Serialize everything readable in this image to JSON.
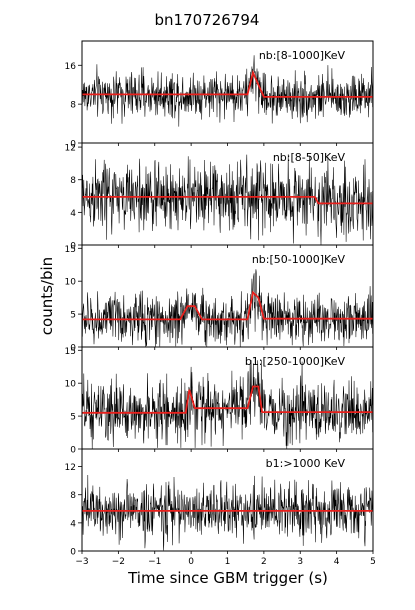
{
  "title": "bn170726794",
  "ylabel": "counts/bin",
  "xlabel": "Time since GBM trigger (s)",
  "colors": {
    "signal": "#000000",
    "model": "#e8201c",
    "frame": "#000000"
  },
  "chart_data": [
    {
      "type": "line",
      "label": "nb:[8-1000]KeV",
      "xlim": [
        -3,
        5
      ],
      "ylim": [
        0,
        21
      ],
      "yticks": [
        0,
        8,
        16
      ],
      "xticks": [
        -3,
        -2,
        -1,
        0,
        1,
        2,
        3,
        4,
        5
      ],
      "baseline": 10,
      "noise_sd": 2.4,
      "model": {
        "x": [
          -3,
          1.55,
          1.7,
          1.85,
          2.0,
          5
        ],
        "y": [
          10,
          10,
          14.5,
          12,
          9.5,
          9.5
        ]
      }
    },
    {
      "type": "line",
      "label": "nb:[8-50]KeV",
      "xlim": [
        -3,
        5
      ],
      "ylim": [
        0,
        12.5
      ],
      "yticks": [
        0,
        4,
        8,
        12
      ],
      "xticks": [
        -3,
        -2,
        -1,
        0,
        1,
        2,
        3,
        4,
        5
      ],
      "baseline": 5.8,
      "noise_sd": 2.2,
      "model": {
        "x": [
          -3,
          3.4,
          3.5,
          5
        ],
        "y": [
          5.9,
          5.9,
          5.1,
          5.1
        ]
      }
    },
    {
      "type": "line",
      "label": "nb:[50-1000]KeV",
      "xlim": [
        -3,
        5
      ],
      "ylim": [
        0,
        15.5
      ],
      "yticks": [
        0,
        5,
        10,
        15
      ],
      "xticks": [
        -3,
        -2,
        -1,
        0,
        1,
        2,
        3,
        4,
        5
      ],
      "baseline": 4.2,
      "noise_sd": 2.0,
      "model": {
        "x": [
          -3,
          -0.3,
          -0.1,
          0.1,
          0.3,
          1.55,
          1.7,
          1.85,
          2.0,
          5
        ],
        "y": [
          4.2,
          4.2,
          6.2,
          6.2,
          4.2,
          4.2,
          8.3,
          7.5,
          4.3,
          4.3
        ]
      }
    },
    {
      "type": "line",
      "label": "b1:[250-1000]KeV",
      "xlim": [
        -3,
        5
      ],
      "ylim": [
        0,
        15.5
      ],
      "yticks": [
        0,
        5,
        10,
        15
      ],
      "xticks": [
        -3,
        -2,
        -1,
        0,
        1,
        2,
        3,
        4,
        5
      ],
      "baseline": 5.5,
      "noise_sd": 2.4,
      "model": {
        "x": [
          -3,
          -0.15,
          -0.05,
          0.1,
          0.2,
          1.55,
          1.7,
          1.85,
          1.95,
          5
        ],
        "y": [
          5.5,
          5.5,
          9,
          6.2,
          6.2,
          6.2,
          9.5,
          9.5,
          5.6,
          5.6
        ]
      }
    },
    {
      "type": "line",
      "label": "b1:>1000 KeV",
      "xlim": [
        -3,
        5
      ],
      "ylim": [
        0,
        14.5
      ],
      "yticks": [
        0,
        4,
        8,
        12
      ],
      "xticks": [
        -3,
        -2,
        -1,
        0,
        1,
        2,
        3,
        4,
        5
      ],
      "baseline": 5.7,
      "noise_sd": 2.0,
      "model": {
        "x": [
          -3,
          5
        ],
        "y": [
          5.7,
          5.7
        ]
      }
    }
  ]
}
